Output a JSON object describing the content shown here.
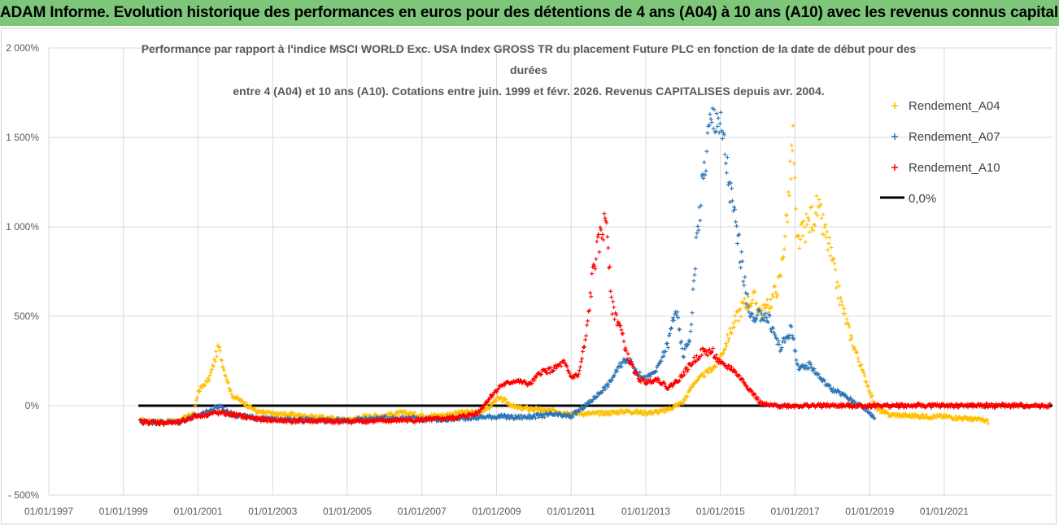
{
  "header": {
    "banner": "ADAM Informe. Evolution historique des performances en euros pour des détentions de 4 ans (A04) à 10 ans (A10) avec les revenus connus capitalisés"
  },
  "colors": {
    "banner_bg": "#7dc67a",
    "A04": "#ffc000",
    "A07": "#2e75b6",
    "A10": "#ff0000",
    "zero": "#000000",
    "grid": "#d9d9d9"
  },
  "chart_data": {
    "type": "scatter",
    "title_lines": [
      "Performance par rapport à l'indice MSCI WORLD Exc. USA Index GROSS TR  du placement Future PLC en fonction de la date de début pour des",
      "durées",
      "entre 4 (A04) et 10 ans (A10). Cotations entre juin. 1999 et févr. 2026. Revenus CAPITALISES depuis avr. 2004."
    ],
    "x_range": [
      1997.0,
      2023.9
    ],
    "y_range": [
      -500,
      2000
    ],
    "y_ticks": [
      {
        "value": 2000,
        "label": "2 000%"
      },
      {
        "value": 1500,
        "label": "1 500%"
      },
      {
        "value": 1000,
        "label": "1 000%"
      },
      {
        "value": 500,
        "label": "500%"
      },
      {
        "value": 0,
        "label": "0%"
      },
      {
        "value": -500,
        "label": "- 500%"
      }
    ],
    "x_ticks": [
      {
        "value": 1997,
        "label": "01/01/1997"
      },
      {
        "value": 1999,
        "label": "01/01/1999"
      },
      {
        "value": 2001,
        "label": "01/01/2001"
      },
      {
        "value": 2003,
        "label": "01/01/2003"
      },
      {
        "value": 2005,
        "label": "01/01/2005"
      },
      {
        "value": 2007,
        "label": "01/01/2007"
      },
      {
        "value": 2009,
        "label": "01/01/2009"
      },
      {
        "value": 2011,
        "label": "01/01/2011"
      },
      {
        "value": 2013,
        "label": "01/01/2013"
      },
      {
        "value": 2015,
        "label": "01/01/2015"
      },
      {
        "value": 2017,
        "label": "01/01/2017"
      },
      {
        "value": 2019,
        "label": "01/01/2019"
      },
      {
        "value": 2021,
        "label": "01/01/2021"
      }
    ],
    "series": [
      {
        "name": "Rendement_A04",
        "color": "#ffc000",
        "points": [
          [
            1999.45,
            -85
          ],
          [
            2000.0,
            -90
          ],
          [
            2000.5,
            -85
          ],
          [
            2000.9,
            -40
          ],
          [
            2001.0,
            80
          ],
          [
            2001.3,
            150
          ],
          [
            2001.55,
            330
          ],
          [
            2001.7,
            200
          ],
          [
            2001.9,
            60
          ],
          [
            2002.2,
            20
          ],
          [
            2002.6,
            -35
          ],
          [
            2003.0,
            -45
          ],
          [
            2003.5,
            -50
          ],
          [
            2004.0,
            -60
          ],
          [
            2004.5,
            -70
          ],
          [
            2005.0,
            -80
          ],
          [
            2005.5,
            -60
          ],
          [
            2006.0,
            -55
          ],
          [
            2006.5,
            -40
          ],
          [
            2007.0,
            -55
          ],
          [
            2007.5,
            -55
          ],
          [
            2008.0,
            -40
          ],
          [
            2008.5,
            -35
          ],
          [
            2008.8,
            -10
          ],
          [
            2009.0,
            40
          ],
          [
            2009.2,
            30
          ],
          [
            2009.5,
            -10
          ],
          [
            2010.0,
            -20
          ],
          [
            2010.5,
            -30
          ],
          [
            2011.0,
            -40
          ],
          [
            2011.5,
            -45
          ],
          [
            2012.0,
            -40
          ],
          [
            2012.5,
            -30
          ],
          [
            2013.0,
            -40
          ],
          [
            2013.5,
            -30
          ],
          [
            2014.0,
            20
          ],
          [
            2014.3,
            130
          ],
          [
            2014.6,
            180
          ],
          [
            2014.9,
            230
          ],
          [
            2015.1,
            320
          ],
          [
            2015.3,
            430
          ],
          [
            2015.6,
            560
          ],
          [
            2015.9,
            600
          ],
          [
            2016.1,
            520
          ],
          [
            2016.3,
            560
          ],
          [
            2016.6,
            700
          ],
          [
            2016.8,
            1100
          ],
          [
            2016.95,
            1500
          ],
          [
            2017.05,
            900
          ],
          [
            2017.3,
            1000
          ],
          [
            2017.6,
            1100
          ],
          [
            2017.9,
            900
          ],
          [
            2018.2,
            600
          ],
          [
            2018.5,
            380
          ],
          [
            2018.8,
            200
          ],
          [
            2019.0,
            80
          ],
          [
            2019.2,
            -20
          ],
          [
            2019.5,
            -50
          ],
          [
            2020.0,
            -55
          ],
          [
            2020.5,
            -60
          ],
          [
            2021.0,
            -60
          ],
          [
            2021.5,
            -70
          ],
          [
            2022.0,
            -80
          ],
          [
            2022.2,
            -90
          ]
        ]
      },
      {
        "name": "Rendement_A07",
        "color": "#2e75b6",
        "points": [
          [
            1999.45,
            -90
          ],
          [
            2000.0,
            -92
          ],
          [
            2000.5,
            -90
          ],
          [
            2000.9,
            -60
          ],
          [
            2001.2,
            -40
          ],
          [
            2001.6,
            0
          ],
          [
            2001.8,
            -40
          ],
          [
            2002.2,
            -60
          ],
          [
            2002.6,
            -70
          ],
          [
            2003.0,
            -75
          ],
          [
            2003.5,
            -80
          ],
          [
            2004.0,
            -80
          ],
          [
            2004.5,
            -80
          ],
          [
            2005.0,
            -85
          ],
          [
            2005.5,
            -75
          ],
          [
            2006.0,
            -70
          ],
          [
            2006.5,
            -70
          ],
          [
            2007.0,
            -75
          ],
          [
            2007.5,
            -80
          ],
          [
            2008.0,
            -70
          ],
          [
            2008.5,
            -65
          ],
          [
            2009.0,
            -60
          ],
          [
            2009.5,
            -65
          ],
          [
            2010.0,
            -60
          ],
          [
            2010.5,
            -50
          ],
          [
            2011.0,
            -60
          ],
          [
            2011.5,
            20
          ],
          [
            2012.0,
            120
          ],
          [
            2012.3,
            220
          ],
          [
            2012.5,
            270
          ],
          [
            2012.8,
            180
          ],
          [
            2013.0,
            150
          ],
          [
            2013.3,
            200
          ],
          [
            2013.6,
            350
          ],
          [
            2013.8,
            550
          ],
          [
            2014.0,
            280
          ],
          [
            2014.2,
            400
          ],
          [
            2014.35,
            900
          ],
          [
            2014.5,
            1200
          ],
          [
            2014.7,
            1550
          ],
          [
            2014.9,
            1650
          ],
          [
            2015.1,
            1450
          ],
          [
            2015.3,
            1150
          ],
          [
            2015.5,
            900
          ],
          [
            2015.7,
            600
          ],
          [
            2015.9,
            460
          ],
          [
            2016.1,
            520
          ],
          [
            2016.3,
            480
          ],
          [
            2016.6,
            320
          ],
          [
            2016.9,
            430
          ],
          [
            2017.1,
            200
          ],
          [
            2017.4,
            230
          ],
          [
            2017.7,
            150
          ],
          [
            2018.0,
            90
          ],
          [
            2018.3,
            60
          ],
          [
            2018.6,
            20
          ],
          [
            2018.9,
            -20
          ],
          [
            2019.15,
            -70
          ]
        ]
      },
      {
        "name": "Rendement_A10",
        "color": "#ff0000",
        "points": [
          [
            1999.45,
            -90
          ],
          [
            2000.0,
            -95
          ],
          [
            2000.5,
            -95
          ],
          [
            2000.9,
            -60
          ],
          [
            2001.2,
            -50
          ],
          [
            2001.5,
            -40
          ],
          [
            2001.8,
            -45
          ],
          [
            2002.2,
            -60
          ],
          [
            2002.6,
            -75
          ],
          [
            2003.0,
            -80
          ],
          [
            2003.5,
            -85
          ],
          [
            2004.0,
            -85
          ],
          [
            2004.5,
            -88
          ],
          [
            2005.0,
            -88
          ],
          [
            2005.5,
            -85
          ],
          [
            2006.0,
            -85
          ],
          [
            2006.5,
            -80
          ],
          [
            2007.0,
            -80
          ],
          [
            2007.5,
            -75
          ],
          [
            2008.0,
            -65
          ],
          [
            2008.5,
            -40
          ],
          [
            2008.8,
            40
          ],
          [
            2009.1,
            110
          ],
          [
            2009.5,
            140
          ],
          [
            2009.9,
            120
          ],
          [
            2010.2,
            190
          ],
          [
            2010.5,
            200
          ],
          [
            2010.8,
            240
          ],
          [
            2011.0,
            160
          ],
          [
            2011.2,
            170
          ],
          [
            2011.4,
            380
          ],
          [
            2011.6,
            780
          ],
          [
            2011.8,
            950
          ],
          [
            2011.95,
            1050
          ],
          [
            2012.1,
            550
          ],
          [
            2012.3,
            450
          ],
          [
            2012.5,
            280
          ],
          [
            2012.8,
            150
          ],
          [
            2013.0,
            130
          ],
          [
            2013.3,
            150
          ],
          [
            2013.6,
            100
          ],
          [
            2013.9,
            150
          ],
          [
            2014.2,
            230
          ],
          [
            2014.5,
            300
          ],
          [
            2014.8,
            300
          ],
          [
            2015.0,
            230
          ],
          [
            2015.3,
            210
          ],
          [
            2015.6,
            140
          ],
          [
            2015.9,
            60
          ],
          [
            2016.1,
            10
          ],
          [
            2016.3,
            0
          ],
          [
            2016.8,
            0
          ],
          [
            2017.5,
            0
          ],
          [
            2018.5,
            0
          ],
          [
            2019.5,
            0
          ],
          [
            2020.5,
            0
          ],
          [
            2021.5,
            0
          ],
          [
            2022.5,
            0
          ],
          [
            2023.2,
            0
          ],
          [
            2023.85,
            0
          ]
        ]
      }
    ],
    "zero_line": {
      "name": "0,0%",
      "value": 0,
      "x_start": 1999.4,
      "x_end": 2023.9
    },
    "legend": {
      "position": "right",
      "entries": [
        "Rendement_A04",
        "Rendement_A07",
        "Rendement_A10",
        "0,0%"
      ]
    }
  }
}
